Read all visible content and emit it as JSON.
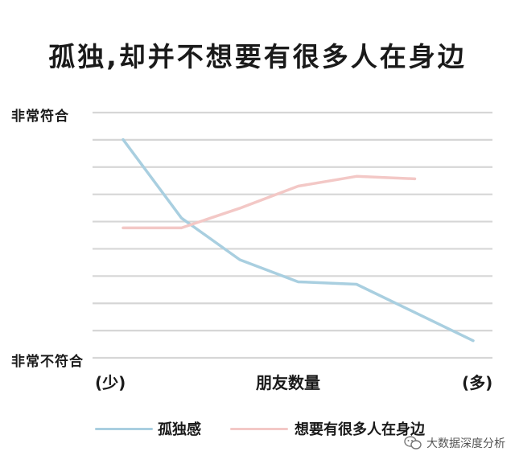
{
  "chart_data": {
    "type": "line",
    "title": "孤独,却并不想要有很多人在身边",
    "ylabel_top": "非常符合",
    "ylabel_bottom": "非常不符合",
    "xlabel": "朋友数量",
    "x_min_label": "(少)",
    "x_max_label": "(多)",
    "x": [
      0,
      1,
      2,
      3,
      4,
      5,
      6
    ],
    "ylim": [
      0,
      10
    ],
    "series": [
      {
        "name": "孤独感",
        "color": "#a9cfe0",
        "values": [
          8.9,
          5.7,
          4.0,
          3.1,
          3.0,
          null,
          0.7
        ]
      },
      {
        "name": "想要有很多人在身边",
        "color": "#f3c8c6",
        "values": [
          5.3,
          5.3,
          6.1,
          7.0,
          7.4,
          7.3,
          null
        ]
      }
    ],
    "grid": true
  },
  "watermark": "大数据深度分析",
  "colors": {
    "grid": "#d6d6d6",
    "text": "#1a1a1a"
  }
}
